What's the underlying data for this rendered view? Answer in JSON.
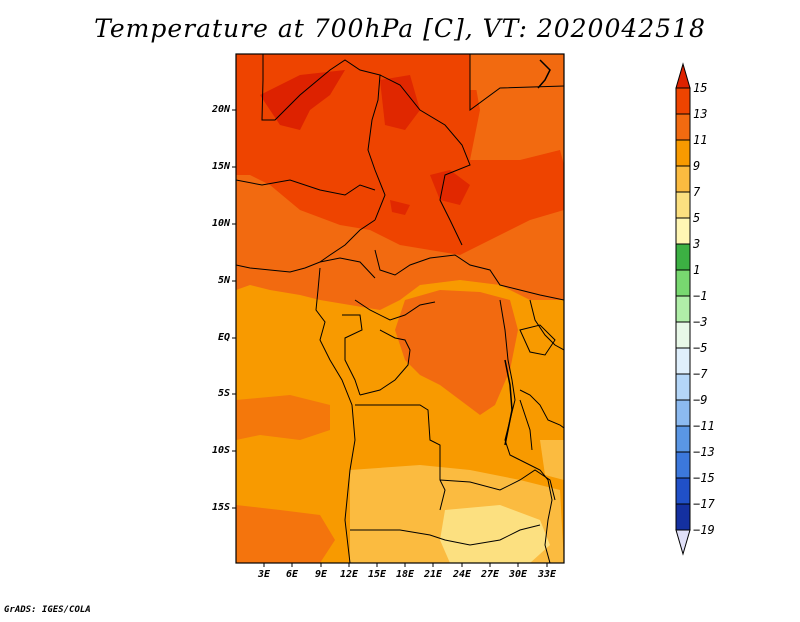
{
  "title": "Temperature at 700hPa [C], VT: 2020042518",
  "map": {
    "variable": "Temperature at 700hPa",
    "units": "C",
    "valid_time": "2020042518",
    "lat_labels": [
      "20N",
      "15N",
      "10N",
      "5N",
      "EQ",
      "5S",
      "10S",
      "15S"
    ],
    "lon_labels": [
      "3E",
      "6E",
      "9E",
      "12E",
      "15E",
      "18E",
      "21E",
      "24E",
      "27E",
      "30E",
      "33E"
    ]
  },
  "colorbar": {
    "labels": [
      "15",
      "13",
      "11",
      "9",
      "7",
      "5",
      "3",
      "1",
      "−1",
      "−3",
      "−5",
      "−7",
      "−9",
      "−11",
      "−13",
      "−15",
      "−17",
      "−19"
    ],
    "colors": [
      "#dd2200",
      "#ee4400",
      "#f26a10",
      "#f89a00",
      "#fbbb40",
      "#fce080",
      "#fff6b4",
      "#3cb043",
      "#78d870",
      "#b0eea8",
      "#e8f8e8",
      "#dfeffc",
      "#b4d6f8",
      "#8cbaf0",
      "#5a96e4",
      "#3c78dc",
      "#2050c8",
      "#1430a0",
      "#0a1e78",
      "#e0e0f8"
    ]
  },
  "credit": "GrADS: IGES/COLA",
  "colors": {
    "warmest": "#dd2200",
    "warm": "#ee4400",
    "mid": "#f26a10",
    "cool": "#f89a00",
    "cooler": "#fbbb40",
    "pale": "#fce080"
  }
}
